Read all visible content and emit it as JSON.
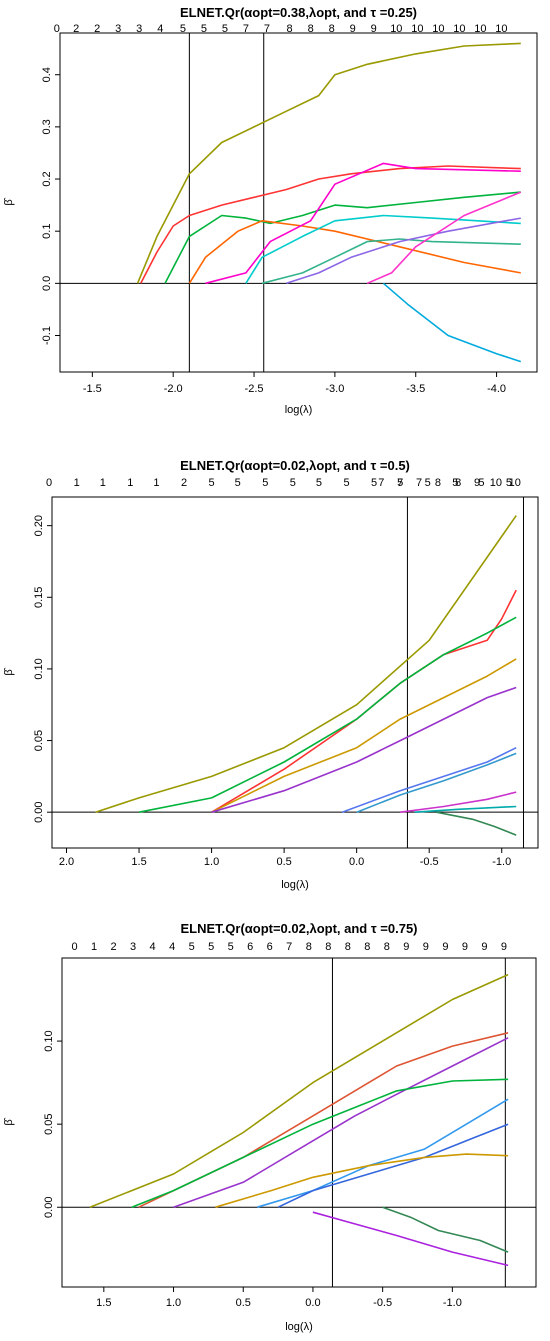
{
  "chart_data": [
    {
      "type": "line",
      "title": "ELNET.Qr(αopt=0.38,λopt, and τ =0.25)",
      "xlabel": "log(λ)",
      "ylabel": "β̂",
      "xlim": [
        -1.3,
        -4.25
      ],
      "ylim": [
        -0.17,
        0.48
      ],
      "x_ticks": [
        -1.5,
        -2.0,
        -2.5,
        -3.0,
        -3.5,
        -4.0
      ],
      "x_tick_labels": [
        "-1.5",
        "-2.0",
        "-2.5",
        "-3.0",
        "-3.5",
        "-4.0"
      ],
      "y_ticks": [
        -0.1,
        0.0,
        0.1,
        0.2,
        0.3,
        0.4
      ],
      "y_tick_labels": [
        "-0.1",
        "0.0",
        "0.1",
        "0.2",
        "0.3",
        "0.4"
      ],
      "top_axis": {
        "x": [
          -1.28,
          -1.4,
          -1.53,
          -1.66,
          -1.79,
          -1.92,
          -2.06,
          -2.19,
          -2.32,
          -2.45,
          -2.58,
          -2.72,
          -2.85,
          -2.98,
          -3.11,
          -3.24,
          -3.38,
          -3.51,
          -3.64,
          -3.77,
          -3.9,
          -4.03
        ],
        "labels": [
          "0",
          "2",
          "2",
          "3",
          "3",
          "4",
          "5",
          "5",
          "5",
          "7",
          "7",
          "8",
          "8",
          "8",
          "9",
          "9",
          "10",
          "10",
          "10",
          "10",
          "10",
          "10"
        ]
      },
      "vlines": [
        -2.1,
        -2.56
      ],
      "hline": 0,
      "series": [
        {
          "color": "#999900",
          "x": [
            -1.78,
            -1.9,
            -2.1,
            -2.3,
            -2.5,
            -2.7,
            -2.9,
            -3.0,
            -3.2,
            -3.5,
            -3.8,
            -4.15
          ],
          "values": [
            0.0,
            0.09,
            0.21,
            0.27,
            0.3,
            0.33,
            0.36,
            0.4,
            0.42,
            0.44,
            0.455,
            0.46
          ]
        },
        {
          "color": "#ff3333",
          "x": [
            -1.8,
            -1.9,
            -2.0,
            -2.1,
            -2.3,
            -2.5,
            -2.7,
            -2.9,
            -3.1,
            -3.4,
            -3.7,
            -4.15
          ],
          "values": [
            0.0,
            0.06,
            0.11,
            0.13,
            0.15,
            0.165,
            0.18,
            0.2,
            0.21,
            0.22,
            0.225,
            0.22
          ]
        },
        {
          "color": "#00b33c",
          "x": [
            -1.95,
            -2.1,
            -2.3,
            -2.45,
            -2.6,
            -2.8,
            -3.0,
            -3.2,
            -3.5,
            -3.8,
            -4.15
          ],
          "values": [
            0.0,
            0.09,
            0.13,
            0.125,
            0.115,
            0.13,
            0.15,
            0.145,
            0.155,
            0.165,
            0.175
          ]
        },
        {
          "color": "#ff6600",
          "x": [
            -2.1,
            -2.2,
            -2.4,
            -2.55,
            -2.8,
            -3.0,
            -3.4,
            -3.8,
            -4.15
          ],
          "values": [
            0.0,
            0.05,
            0.1,
            0.12,
            0.11,
            0.1,
            0.07,
            0.04,
            0.02
          ]
        },
        {
          "color": "#ff00cc",
          "x": [
            -2.2,
            -2.45,
            -2.6,
            -2.85,
            -3.0,
            -3.3,
            -3.5,
            -4.15
          ],
          "values": [
            0.0,
            0.02,
            0.08,
            0.12,
            0.19,
            0.23,
            0.22,
            0.215
          ]
        },
        {
          "color": "#00cccc",
          "x": [
            -2.45,
            -2.55,
            -2.8,
            -3.0,
            -3.3,
            -3.6,
            -4.15
          ],
          "values": [
            0.0,
            0.05,
            0.09,
            0.12,
            0.13,
            0.125,
            0.115
          ]
        },
        {
          "color": "#33b38c",
          "x": [
            -2.55,
            -2.8,
            -3.0,
            -3.2,
            -3.4,
            -3.6,
            -4.15
          ],
          "values": [
            0.0,
            0.02,
            0.05,
            0.08,
            0.085,
            0.08,
            0.075
          ]
        },
        {
          "color": "#8c66e6",
          "x": [
            -2.7,
            -2.9,
            -3.1,
            -3.4,
            -3.7,
            -4.15
          ],
          "values": [
            0.0,
            0.02,
            0.05,
            0.08,
            0.1,
            0.125
          ]
        },
        {
          "color": "#ff33cc",
          "x": [
            -3.2,
            -3.35,
            -3.5,
            -3.8,
            -4.15
          ],
          "values": [
            0.0,
            0.02,
            0.07,
            0.13,
            0.175
          ]
        },
        {
          "color": "#00aadd",
          "x": [
            -3.3,
            -3.45,
            -3.7,
            -4.0,
            -4.15
          ],
          "values": [
            0.0,
            -0.04,
            -0.1,
            -0.135,
            -0.15
          ]
        }
      ]
    },
    {
      "type": "line",
      "title": "ELNET.Qr(αopt=0.02,λopt, and τ =0.5)",
      "xlabel": "log(λ)",
      "ylabel": "β̂",
      "xlim": [
        2.1,
        -1.25
      ],
      "ylim": [
        -0.025,
        0.22
      ],
      "x_ticks": [
        2.0,
        1.5,
        1.0,
        0.5,
        0.0,
        -0.5,
        -1.0
      ],
      "x_tick_labels": [
        "2.0",
        "1.5",
        "1.0",
        "0.5",
        "0.0",
        "-0.5",
        "-1.0"
      ],
      "y_ticks": [
        0.0,
        0.05,
        0.1,
        0.15,
        0.2
      ],
      "y_tick_labels": [
        "0.00",
        "0.05",
        "0.10",
        "0.15",
        "0.20"
      ],
      "top_axis": {
        "x": [
          2.12,
          1.93,
          1.75,
          1.56,
          1.38,
          1.19,
          1.0,
          0.82,
          0.63,
          0.44,
          0.26,
          0.07,
          -0.12,
          -0.3,
          -0.49,
          -0.68,
          -0.86,
          -1.05
        ],
        "labels": [
          "0",
          "1",
          "1",
          "1",
          "1",
          "2",
          "5",
          "5",
          "5",
          "5",
          "5",
          "5",
          "5",
          "5",
          "5",
          "5",
          "5",
          "5"
        ]
      },
      "top_axis_tail": {
        "x": [
          -0.17,
          -0.3,
          -0.43,
          -0.56,
          -0.7,
          -0.83,
          -0.96,
          -1.09
        ],
        "labels": [
          "7",
          "7",
          "7",
          "8",
          "8",
          "9",
          "10",
          "10"
        ]
      },
      "vlines": [
        -0.35,
        -1.15
      ],
      "hline": 0,
      "series": [
        {
          "color": "#999900",
          "x": [
            1.8,
            1.5,
            1.0,
            0.5,
            0.0,
            -0.5,
            -1.1
          ],
          "values": [
            0.0,
            0.01,
            0.025,
            0.045,
            0.075,
            0.12,
            0.207
          ]
        },
        {
          "color": "#ff3333",
          "x": [
            1.0,
            0.5,
            0.0,
            -0.3,
            -0.6,
            -0.9,
            -1.0,
            -1.1
          ],
          "values": [
            0.0,
            0.03,
            0.065,
            0.09,
            0.11,
            0.12,
            0.135,
            0.155
          ]
        },
        {
          "color": "#00b33c",
          "x": [
            1.5,
            1.0,
            0.5,
            0.0,
            -0.3,
            -0.6,
            -0.9,
            -1.1
          ],
          "values": [
            0.0,
            0.01,
            0.035,
            0.065,
            0.09,
            0.11,
            0.125,
            0.136
          ]
        },
        {
          "color": "#cc9900",
          "x": [
            1.0,
            0.5,
            0.0,
            -0.3,
            -0.6,
            -0.9,
            -1.1
          ],
          "values": [
            0.0,
            0.025,
            0.045,
            0.065,
            0.08,
            0.095,
            0.107
          ]
        },
        {
          "color": "#9933cc",
          "x": [
            1.0,
            0.5,
            0.0,
            -0.3,
            -0.6,
            -0.9,
            -1.1
          ],
          "values": [
            0.0,
            0.015,
            0.035,
            0.05,
            0.065,
            0.08,
            0.087
          ]
        },
        {
          "color": "#5577ee",
          "x": [
            0.1,
            -0.3,
            -0.6,
            -0.9,
            -1.1
          ],
          "values": [
            0.0,
            0.015,
            0.025,
            0.035,
            0.045
          ]
        },
        {
          "color": "#3399cc",
          "x": [
            0.0,
            -0.3,
            -0.6,
            -0.9,
            -1.1
          ],
          "values": [
            0.0,
            0.012,
            0.022,
            0.033,
            0.041
          ]
        },
        {
          "color": "#cc33cc",
          "x": [
            -0.3,
            -0.6,
            -0.9,
            -1.1
          ],
          "values": [
            0.0,
            0.004,
            0.009,
            0.014
          ]
        },
        {
          "color": "#00aaaa",
          "x": [
            -0.4,
            -0.7,
            -1.1
          ],
          "values": [
            0.0,
            0.002,
            0.004
          ]
        },
        {
          "color": "#338855",
          "x": [
            -0.55,
            -0.8,
            -0.95,
            -1.1
          ],
          "values": [
            0.0,
            -0.005,
            -0.01,
            -0.016
          ]
        }
      ]
    },
    {
      "type": "line",
      "title": "ELNET.Qr(αopt=0.02,λopt, and τ =0.75)",
      "xlabel": "log(λ)",
      "ylabel": "β̂",
      "xlim": [
        1.8,
        -1.6
      ],
      "ylim": [
        -0.048,
        0.15
      ],
      "x_ticks": [
        1.5,
        1.0,
        0.5,
        0.0,
        -0.5,
        -1.0
      ],
      "x_tick_labels": [
        "1.5",
        "1.0",
        "0.5",
        "0.0",
        "-0.5",
        "-1.0"
      ],
      "y_ticks": [
        0.0,
        0.05,
        0.1
      ],
      "y_tick_labels": [
        "0.00",
        "0.05",
        "0.10"
      ],
      "top_axis": {
        "x": [
          1.71,
          1.57,
          1.43,
          1.29,
          1.15,
          1.01,
          0.87,
          0.73,
          0.59,
          0.45,
          0.31,
          0.17,
          0.03,
          -0.11,
          -0.25,
          -0.39,
          -0.53,
          -0.67,
          -0.81,
          -0.95,
          -1.09,
          -1.23,
          -1.37
        ],
        "labels": [
          "0",
          "1",
          "2",
          "3",
          "4",
          "4",
          "5",
          "5",
          "5",
          "6",
          "6",
          "7",
          "8",
          "8",
          "8",
          "8",
          "8",
          "9",
          "9",
          "9",
          "9",
          "9",
          "9"
        ]
      },
      "vlines": [
        -0.14,
        -1.38
      ],
      "hline": 0,
      "series": [
        {
          "color": "#999900",
          "x": [
            1.6,
            1.0,
            0.5,
            0.0,
            -0.5,
            -1.0,
            -1.4
          ],
          "values": [
            0.0,
            0.02,
            0.045,
            0.075,
            0.1,
            0.125,
            0.14
          ]
        },
        {
          "color": "#dd5533",
          "x": [
            1.25,
            1.0,
            0.5,
            0.0,
            -0.3,
            -0.6,
            -1.0,
            -1.4
          ],
          "values": [
            0.0,
            0.01,
            0.03,
            0.055,
            0.07,
            0.085,
            0.097,
            0.105
          ]
        },
        {
          "color": "#9933cc",
          "x": [
            1.0,
            0.5,
            0.0,
            -0.3,
            -0.6,
            -1.0,
            -1.4
          ],
          "values": [
            0.0,
            0.015,
            0.04,
            0.055,
            0.068,
            0.085,
            0.102
          ]
        },
        {
          "color": "#00b33c",
          "x": [
            1.3,
            1.0,
            0.5,
            0.0,
            -0.3,
            -0.6,
            -1.0,
            -1.4
          ],
          "values": [
            0.0,
            0.01,
            0.03,
            0.05,
            0.06,
            0.07,
            0.076,
            0.077
          ]
        },
        {
          "color": "#3399ee",
          "x": [
            0.4,
            0.0,
            -0.4,
            -0.8,
            -1.1,
            -1.4
          ],
          "values": [
            0.0,
            0.01,
            0.025,
            0.035,
            0.05,
            0.065
          ]
        },
        {
          "color": "#3366dd",
          "x": [
            0.25,
            0.0,
            -0.4,
            -0.8,
            -1.1,
            -1.4
          ],
          "values": [
            0.0,
            0.01,
            0.02,
            0.03,
            0.04,
            0.05
          ]
        },
        {
          "color": "#cc9900",
          "x": [
            0.7,
            0.3,
            0.0,
            -0.4,
            -0.8,
            -1.1,
            -1.4
          ],
          "values": [
            0.0,
            0.01,
            0.018,
            0.025,
            0.03,
            0.032,
            0.031
          ]
        },
        {
          "color": "#338855",
          "x": [
            -0.5,
            -0.7,
            -0.9,
            -1.2,
            -1.4
          ],
          "values": [
            0.0,
            -0.006,
            -0.014,
            -0.02,
            -0.027
          ]
        },
        {
          "color": "#aa22dd",
          "x": [
            0.0,
            -0.3,
            -0.6,
            -1.0,
            -1.4
          ],
          "values": [
            -0.003,
            -0.01,
            -0.017,
            -0.027,
            -0.035
          ]
        }
      ]
    }
  ]
}
